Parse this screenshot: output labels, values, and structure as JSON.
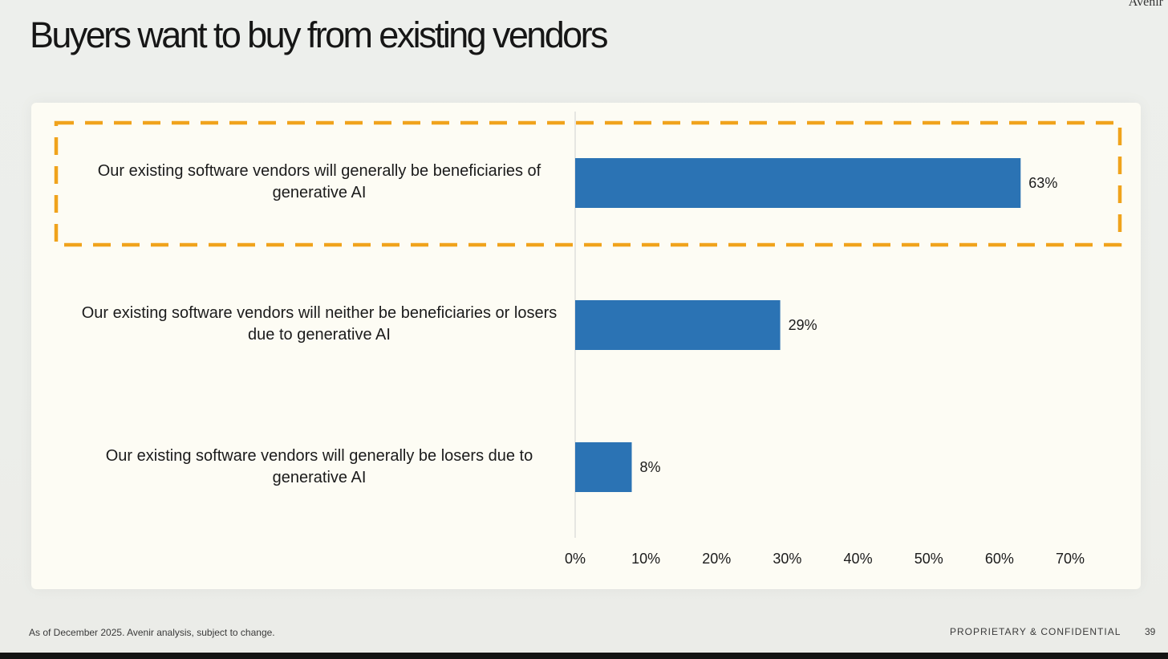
{
  "slide": {
    "brand": "Avenir",
    "title": "Buyers want to buy from existing vendors",
    "footnote": "As of December 2025. Avenir analysis, subject to change.",
    "confidential": "PROPRIETARY & CONFIDENTIAL",
    "page_number": "39"
  },
  "colors": {
    "bar": "#2b73b4",
    "highlight": "#f0a31c",
    "panel": "#fdfcf4"
  },
  "chart_data": {
    "type": "bar",
    "orientation": "horizontal",
    "categories": [
      "Our existing software vendors will generally be beneficiaries of generative AI",
      "Our existing software vendors will neither be beneficiaries or losers due to generative AI",
      "Our existing software vendors will generally be losers due to generative AI"
    ],
    "values": [
      63,
      29,
      8
    ],
    "value_labels": [
      "63%",
      "29%",
      "8%"
    ],
    "xlim": [
      0,
      70
    ],
    "xticks": [
      "0%",
      "10%",
      "20%",
      "30%",
      "40%",
      "50%",
      "60%",
      "70%"
    ],
    "grid": false,
    "highlighted_category": "Our existing software vendors will generally be beneficiaries of generative AI"
  }
}
